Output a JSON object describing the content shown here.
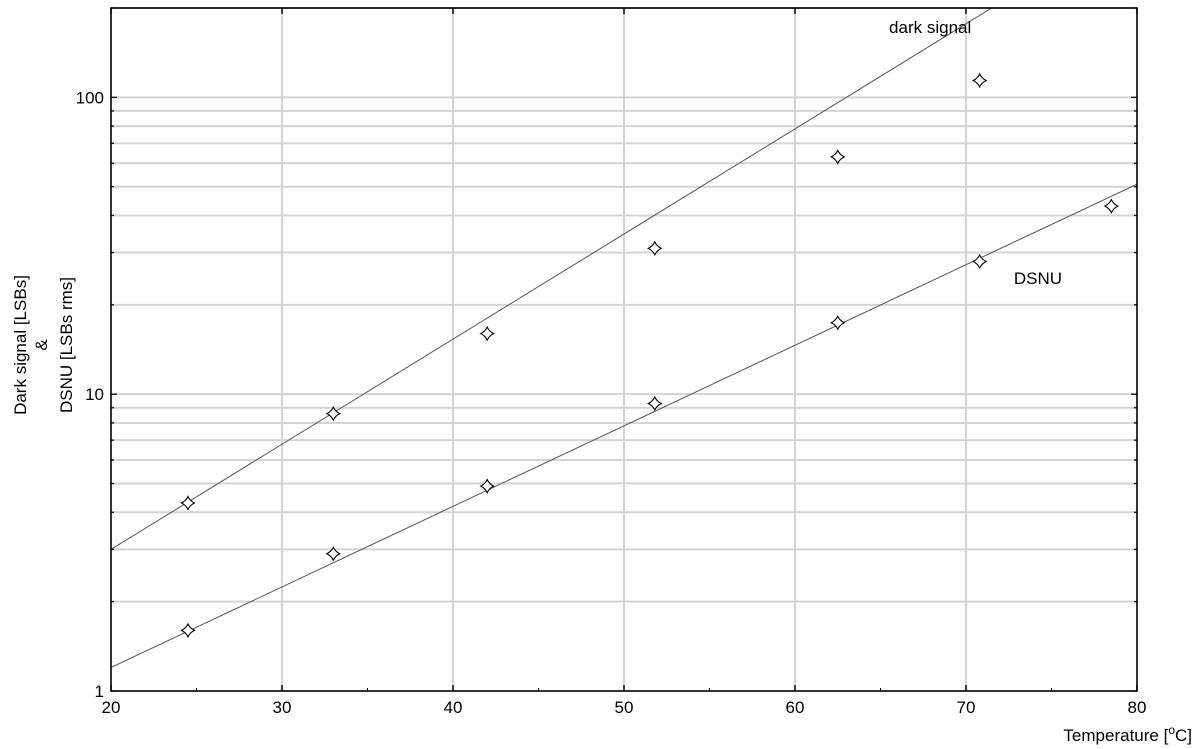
{
  "chart_data": {
    "type": "scatter",
    "title": "",
    "xlabel": "Temperature [°C]",
    "xlabel_parts": {
      "prefix": "Temperature [",
      "superscript": "o",
      "suffix": "C]"
    },
    "ylabel_line1": "Dark signal [LSBs]",
    "ylabel_line2": "&",
    "ylabel_line3": "DSNU [LSBs rms]",
    "xlim": [
      20,
      80
    ],
    "ylim": [
      1,
      200
    ],
    "yscale": "log",
    "grid": true,
    "x_ticks": [
      "20",
      "30",
      "40",
      "50",
      "60",
      "70",
      "80"
    ],
    "y_ticks": [
      "1",
      "10",
      "100"
    ],
    "series": [
      {
        "name": "dark signal",
        "marker": "four-point-star",
        "x": [
          24.5,
          33.0,
          42.0,
          51.8,
          62.5,
          70.8
        ],
        "y": [
          4.3,
          8.6,
          16.0,
          31.0,
          63.0,
          114.0
        ],
        "fit": {
          "x": [
            20,
            71.5
          ],
          "y": [
            3.0,
            200
          ]
        }
      },
      {
        "name": "DSNU",
        "marker": "four-point-star",
        "x": [
          24.5,
          33.0,
          42.0,
          51.8,
          62.5,
          70.8,
          78.5
        ],
        "y": [
          1.6,
          2.9,
          4.9,
          9.3,
          17.4,
          28.0,
          43.0
        ],
        "fit": {
          "x": [
            20,
            80
          ],
          "y": [
            1.2,
            51
          ]
        }
      }
    ],
    "annotations": [
      {
        "text": "dark signal",
        "x": 65.5,
        "y": 165
      },
      {
        "text": "DSNU",
        "x": 72.8,
        "y": 23.5
      }
    ],
    "colors": {
      "line": "#555555",
      "grid": "#d4d4d4",
      "marker": "#000000"
    }
  }
}
